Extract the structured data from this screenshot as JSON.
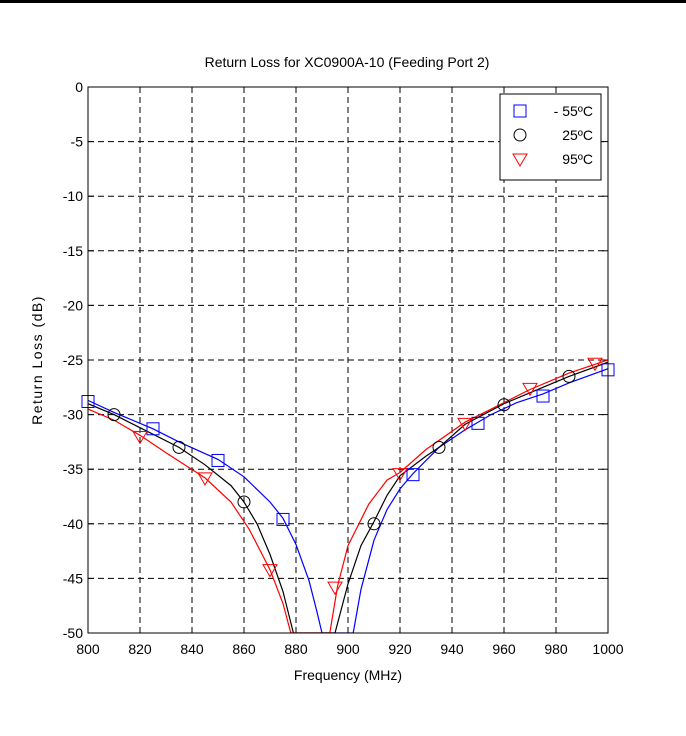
{
  "chart_data": {
    "type": "line",
    "title": "Return Loss for XC0900A-10 (Feeding Port 2)",
    "xlabel": "Frequency (MHz)",
    "ylabel": "Return Loss (dB)",
    "xlim": [
      800,
      1000
    ],
    "ylim": [
      -50,
      0
    ],
    "x_ticks": [
      800,
      820,
      840,
      860,
      880,
      900,
      920,
      940,
      960,
      980,
      1000
    ],
    "y_ticks": [
      0,
      -5,
      -10,
      -15,
      -20,
      -25,
      -30,
      -35,
      -40,
      -45,
      -50
    ],
    "grid": true,
    "grid_style": "dashed",
    "legend_position": "top-right",
    "series": [
      {
        "name": "- 55ºC",
        "color": "#0000ff",
        "marker": "square",
        "curve": [
          [
            800,
            -28.7
          ],
          [
            810,
            -29.8
          ],
          [
            825,
            -31.3
          ],
          [
            835,
            -32.5
          ],
          [
            850,
            -34.1
          ],
          [
            860,
            -35.7
          ],
          [
            870,
            -38.0
          ],
          [
            875,
            -39.5
          ],
          [
            880,
            -41.9
          ],
          [
            885,
            -45.2
          ],
          [
            888,
            -48.0
          ],
          [
            890,
            -50.0
          ],
          [
            902,
            -50.0
          ],
          [
            905,
            -46.0
          ],
          [
            910,
            -41.5
          ],
          [
            915,
            -38.7
          ],
          [
            920,
            -36.8
          ],
          [
            925,
            -35.4
          ],
          [
            935,
            -33.0
          ],
          [
            945,
            -31.4
          ],
          [
            955,
            -30.0
          ],
          [
            965,
            -28.9
          ],
          [
            975,
            -28.1
          ],
          [
            985,
            -27.1
          ],
          [
            1000,
            -25.8
          ]
        ],
        "points": [
          [
            800,
            -28.8
          ],
          [
            825,
            -31.3
          ],
          [
            850,
            -34.2
          ],
          [
            875,
            -39.6
          ],
          [
            925,
            -35.5
          ],
          [
            950,
            -30.8
          ],
          [
            975,
            -28.3
          ],
          [
            1000,
            -25.9
          ]
        ]
      },
      {
        "name": "25ºC",
        "color": "#000000",
        "marker": "circle",
        "curve": [
          [
            800,
            -29.0
          ],
          [
            810,
            -30.0
          ],
          [
            820,
            -31.2
          ],
          [
            835,
            -33.0
          ],
          [
            845,
            -34.6
          ],
          [
            855,
            -36.5
          ],
          [
            860,
            -38.0
          ],
          [
            865,
            -40.0
          ],
          [
            870,
            -42.8
          ],
          [
            875,
            -46.2
          ],
          [
            879,
            -50.0
          ],
          [
            895,
            -50.0
          ],
          [
            900,
            -45.5
          ],
          [
            905,
            -42.0
          ],
          [
            910,
            -39.8
          ],
          [
            915,
            -37.4
          ],
          [
            920,
            -35.6
          ],
          [
            930,
            -33.8
          ],
          [
            935,
            -33.0
          ],
          [
            945,
            -30.9
          ],
          [
            960,
            -29.0
          ],
          [
            975,
            -27.5
          ],
          [
            985,
            -26.5
          ],
          [
            1000,
            -25.2
          ]
        ],
        "points": [
          [
            810,
            -30.0
          ],
          [
            835,
            -33.0
          ],
          [
            860,
            -38.0
          ],
          [
            910,
            -40.0
          ],
          [
            935,
            -33.0
          ],
          [
            960,
            -29.1
          ],
          [
            985,
            -26.5
          ]
        ]
      },
      {
        "name": "95ºC",
        "color": "#ff0000",
        "marker": "triangle-down",
        "curve": [
          [
            800,
            -29.5
          ],
          [
            810,
            -30.5
          ],
          [
            820,
            -31.9
          ],
          [
            830,
            -33.5
          ],
          [
            845,
            -35.8
          ],
          [
            855,
            -38.0
          ],
          [
            862,
            -40.5
          ],
          [
            870,
            -44.2
          ],
          [
            875,
            -47.3
          ],
          [
            878,
            -50.0
          ],
          [
            893,
            -50.0
          ],
          [
            896,
            -45.7
          ],
          [
            900,
            -42.0
          ],
          [
            908,
            -38.2
          ],
          [
            915,
            -36.0
          ],
          [
            920,
            -35.3
          ],
          [
            930,
            -33.2
          ],
          [
            945,
            -30.7
          ],
          [
            960,
            -28.9
          ],
          [
            970,
            -27.7
          ],
          [
            985,
            -26.2
          ],
          [
            1000,
            -25.0
          ]
        ],
        "points": [
          [
            820,
            -32.0
          ],
          [
            845,
            -35.8
          ],
          [
            870,
            -44.2
          ],
          [
            895,
            -45.8
          ],
          [
            920,
            -35.4
          ],
          [
            945,
            -30.8
          ],
          [
            970,
            -27.6
          ],
          [
            995,
            -25.3
          ]
        ]
      }
    ]
  }
}
